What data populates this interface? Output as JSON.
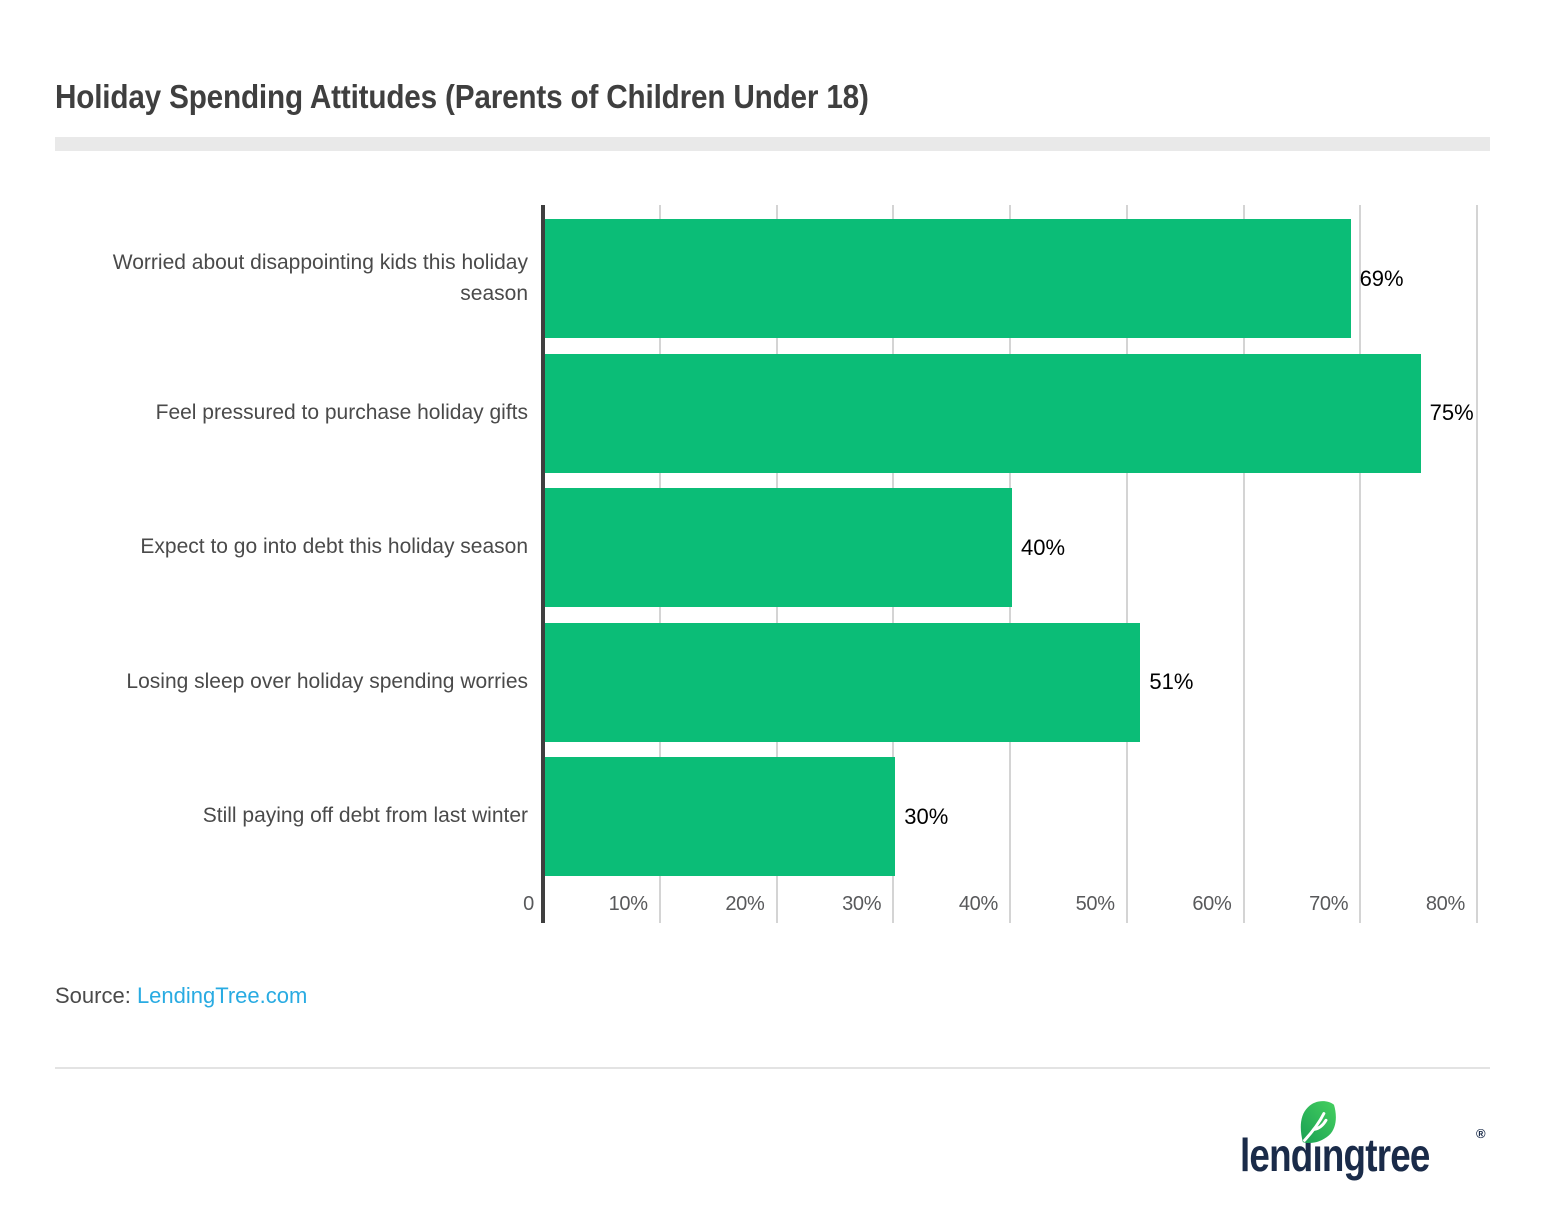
{
  "title": "Holiday Spending Attitudes (Parents of Children Under 18)",
  "chart_data": {
    "type": "bar",
    "orientation": "horizontal",
    "title": "Holiday Spending Attitudes (Parents of Children Under 18)",
    "categories": [
      "Worried about disappointing kids this holiday season",
      "Feel pressured to purchase holiday gifts",
      "Expect to go into debt this holiday season",
      "Losing sleep over holiday spending worries",
      "Still paying off debt from last winter"
    ],
    "values": [
      69,
      75,
      40,
      51,
      30
    ],
    "value_labels": [
      "69%",
      "75%",
      "40%",
      "51%",
      "30%"
    ],
    "x_ticks": [
      "0",
      "10%",
      "20%",
      "30%",
      "40%",
      "50%",
      "60%",
      "70%",
      "80%"
    ],
    "xlim": [
      0,
      80
    ],
    "grid": true,
    "legend": "none",
    "bar_color": "#0bbd77"
  },
  "source": {
    "prefix": "Source: ",
    "link_text": "LendingTree.com",
    "link_color": "#29abe2"
  },
  "logo": {
    "text_left": "lend",
    "text_dotless_i": "ı",
    "text_right": "ngtree",
    "registered_mark": "®",
    "navy": "#1a2b49",
    "leaf_dark": "#1aa054",
    "leaf_light": "#45d05f"
  }
}
